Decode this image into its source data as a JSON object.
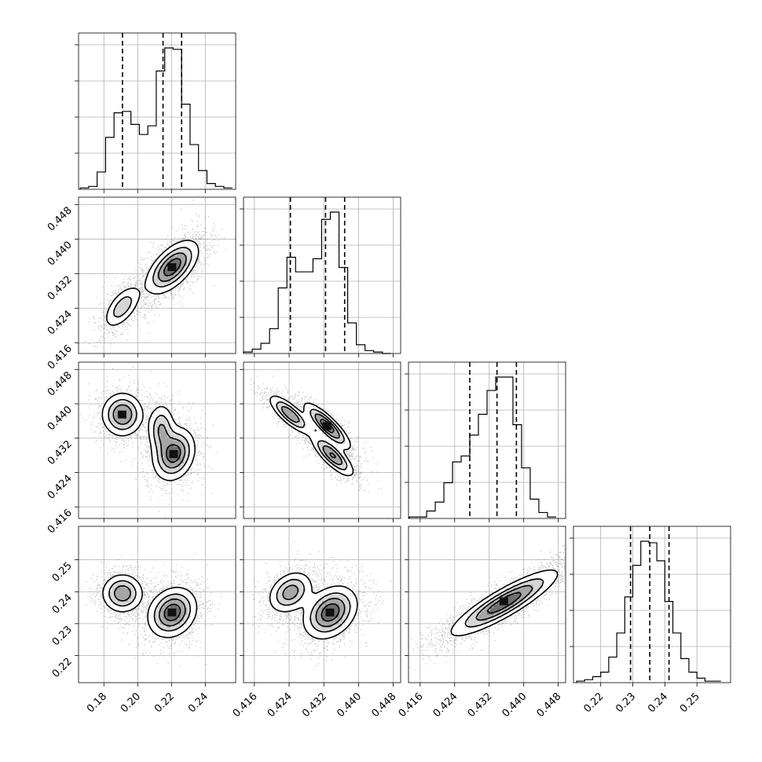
{
  "chart_data": {
    "type": "corner",
    "grid": true,
    "parameters": [
      {
        "id": "p1",
        "range": [
          0.165,
          0.258
        ],
        "ticks": [
          0.18,
          0.2,
          0.22,
          0.24
        ],
        "tick_labels": [
          "0.18",
          "0.20",
          "0.22",
          "0.24"
        ],
        "quantiles": [
          0.191,
          0.215,
          0.226
        ],
        "hist_bins": [
          0.166,
          0.171,
          0.176,
          0.181,
          0.186,
          0.191,
          0.196,
          0.201,
          0.206,
          0.211,
          0.216,
          0.221,
          0.226,
          0.231,
          0.236,
          0.241,
          0.246,
          0.251,
          0.256
        ],
        "hist_values": [
          0.01,
          0.02,
          0.12,
          0.36,
          0.53,
          0.54,
          0.45,
          0.38,
          0.44,
          0.82,
          0.98,
          0.97,
          0.59,
          0.31,
          0.13,
          0.04,
          0.02,
          0.01
        ]
      },
      {
        "id": "p2",
        "range": [
          0.4135,
          0.4497
        ],
        "ticks": [
          0.416,
          0.424,
          0.432,
          0.44,
          0.448
        ],
        "tick_labels": [
          "0.416",
          "0.424",
          "0.432",
          "0.440",
          "0.448"
        ],
        "quantiles": [
          0.4243,
          0.4324,
          0.4368
        ],
        "hist_bins": [
          0.4135,
          0.4155,
          0.4175,
          0.4195,
          0.4215,
          0.4235,
          0.4255,
          0.4275,
          0.4295,
          0.4315,
          0.4335,
          0.4355,
          0.4375,
          0.4395,
          0.4415,
          0.4435,
          0.4455,
          0.4475
        ],
        "hist_values": [
          0.01,
          0.03,
          0.07,
          0.17,
          0.45,
          0.66,
          0.56,
          0.56,
          0.65,
          0.92,
          0.97,
          0.59,
          0.21,
          0.06,
          0.02,
          0.01,
          0.0
        ]
      },
      {
        "id": "p3",
        "range": [
          0.4133,
          0.4497
        ],
        "ticks": [
          0.416,
          0.424,
          0.432,
          0.44,
          0.448
        ],
        "tick_labels": [
          "0.416",
          "0.424",
          "0.432",
          "0.440",
          "0.448"
        ],
        "quantiles": [
          0.4275,
          0.4338,
          0.4383
        ],
        "hist_bins": [
          0.4135,
          0.4155,
          0.4175,
          0.4195,
          0.4215,
          0.4235,
          0.4255,
          0.4275,
          0.4295,
          0.4315,
          0.4335,
          0.4355,
          0.4375,
          0.4395,
          0.4415,
          0.4435,
          0.4455,
          0.4475
        ],
        "hist_values": [
          0.01,
          0.01,
          0.05,
          0.11,
          0.24,
          0.38,
          0.42,
          0.56,
          0.7,
          0.86,
          0.95,
          0.95,
          0.63,
          0.34,
          0.13,
          0.04,
          0.01
        ]
      },
      {
        "id": "p4",
        "range": [
          0.2115,
          0.2605
        ],
        "ticks": [
          0.22,
          0.23,
          0.24,
          0.25
        ],
        "tick_labels": [
          "0.22",
          "0.23",
          "0.24",
          "0.25"
        ],
        "quantiles": [
          0.2293,
          0.2353,
          0.2413
        ],
        "hist_bins": [
          0.2125,
          0.215,
          0.2175,
          0.22,
          0.2225,
          0.225,
          0.2275,
          0.23,
          0.2325,
          0.235,
          0.2375,
          0.24,
          0.2425,
          0.245,
          0.2475,
          0.25,
          0.2525,
          0.255,
          0.2575
        ],
        "hist_values": [
          0.01,
          0.02,
          0.04,
          0.07,
          0.17,
          0.33,
          0.57,
          0.78,
          0.94,
          0.93,
          0.81,
          0.54,
          0.33,
          0.16,
          0.07,
          0.03,
          0.01,
          0.01
        ]
      }
    ],
    "pairs": [
      {
        "row": 1,
        "col": 0,
        "modes": [
          {
            "cx": 0.191,
            "cy": 0.4243,
            "sx": 0.0055,
            "sy": 0.0025,
            "rho": 0.6,
            "w": 0.5
          },
          {
            "cx": 0.2205,
            "cy": 0.4335,
            "sx": 0.0075,
            "sy": 0.003,
            "rho": 0.6,
            "w": 1.0
          }
        ],
        "peaks": [
          [
            0.2205,
            0.4335
          ]
        ]
      },
      {
        "row": 2,
        "col": 0,
        "modes": [
          {
            "cx": 0.191,
            "cy": 0.4375,
            "sx": 0.006,
            "sy": 0.0025,
            "rho": 0.0,
            "w": 0.85
          },
          {
            "cx": 0.214,
            "cy": 0.434,
            "sx": 0.004,
            "sy": 0.003,
            "rho": 0.0,
            "w": 0.6
          },
          {
            "cx": 0.2215,
            "cy": 0.4283,
            "sx": 0.006,
            "sy": 0.003,
            "rho": 0.2,
            "w": 1.0
          }
        ],
        "peaks": [
          [
            0.191,
            0.4375
          ],
          [
            0.2215,
            0.4283
          ]
        ]
      },
      {
        "row": 2,
        "col": 1,
        "modes": [
          {
            "cx": 0.4243,
            "cy": 0.4375,
            "sx": 0.0024,
            "sy": 0.0022,
            "rho": -0.8,
            "w": 0.8
          },
          {
            "cx": 0.4328,
            "cy": 0.4348,
            "sx": 0.0026,
            "sy": 0.0026,
            "rho": -0.85,
            "w": 1.0
          },
          {
            "cx": 0.434,
            "cy": 0.428,
            "sx": 0.0024,
            "sy": 0.0024,
            "rho": -0.8,
            "w": 0.85
          }
        ],
        "peaks": [
          [
            0.4328,
            0.4348
          ]
        ]
      },
      {
        "row": 3,
        "col": 0,
        "modes": [
          {
            "cx": 0.191,
            "cy": 0.2395,
            "sx": 0.006,
            "sy": 0.003,
            "rho": 0.0,
            "w": 0.75
          },
          {
            "cx": 0.2205,
            "cy": 0.2335,
            "sx": 0.007,
            "sy": 0.0038,
            "rho": 0.2,
            "w": 1.0
          }
        ],
        "peaks": [
          [
            0.2205,
            0.2335
          ]
        ]
      },
      {
        "row": 3,
        "col": 1,
        "modes": [
          {
            "cx": 0.4243,
            "cy": 0.2398,
            "sx": 0.0025,
            "sy": 0.0032,
            "rho": 0.3,
            "w": 0.7
          },
          {
            "cx": 0.4335,
            "cy": 0.2335,
            "sx": 0.003,
            "sy": 0.004,
            "rho": 0.3,
            "w": 1.0
          }
        ],
        "peaks": [
          [
            0.4335,
            0.2335
          ]
        ]
      },
      {
        "row": 3,
        "col": 2,
        "modes": [
          {
            "cx": 0.4355,
            "cy": 0.2365,
            "sx": 0.006,
            "sy": 0.005,
            "rho": 0.88,
            "w": 1.0
          }
        ],
        "peaks": [
          [
            0.4355,
            0.237
          ]
        ]
      }
    ]
  }
}
